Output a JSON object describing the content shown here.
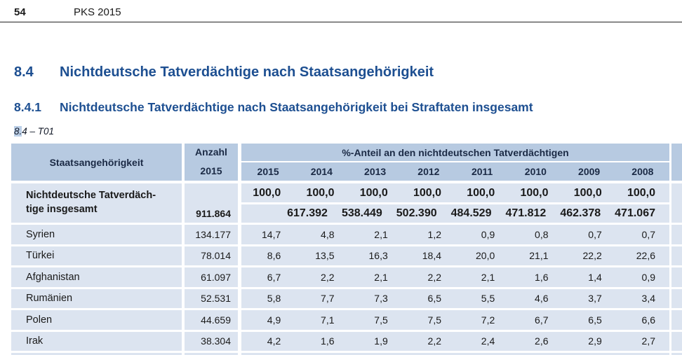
{
  "colors": {
    "heading_blue": "#1d4f91",
    "table_header_bg": "#b7cae1",
    "table_row_bg": "#dce4f0",
    "header_text": "#1b2a45",
    "body_text": "#1a1a1a"
  },
  "page": {
    "number": "54",
    "header_title": "PKS 2015"
  },
  "headings": {
    "h1_number": "8.4",
    "h1_text": "Nichtdeutsche Tatverdächtige nach Staatsangehörigkeit",
    "h2_number": "8.4.1",
    "h2_text": "Nichtdeutsche Tatverdächtige nach Staatsangehörigkeit bei Straftaten insgesamt",
    "table_label": "8.4 – T01"
  },
  "table": {
    "col1_header": "Staatsangehörigkeit",
    "col2_header_line1": "Anzahl",
    "col2_header_line2": "2015",
    "group_header": "%-Anteil an den nichtdeutschen Tatverdächtigen",
    "years": [
      "2015",
      "2014",
      "2013",
      "2012",
      "2011",
      "2010",
      "2009",
      "2008"
    ],
    "total_row": {
      "label_line1": "Nichtdeutsche Tatverdäch-",
      "label_line2": "tige insgesamt",
      "anzahl": "911.864",
      "percent": [
        "100,0",
        "100,0",
        "100,0",
        "100,0",
        "100,0",
        "100,0",
        "100,0",
        "100,0"
      ],
      "absolute": [
        "",
        "617.392",
        "538.449",
        "502.390",
        "484.529",
        "471.812",
        "462.378",
        "471.067"
      ]
    },
    "rows": [
      {
        "label": "Syrien",
        "anzahl": "134.177",
        "values": [
          "14,7",
          "4,8",
          "2,1",
          "1,2",
          "0,9",
          "0,8",
          "0,7",
          "0,7"
        ]
      },
      {
        "label": "Türkei",
        "anzahl": "78.014",
        "values": [
          "8,6",
          "13,5",
          "16,3",
          "18,4",
          "20,0",
          "21,1",
          "22,2",
          "22,6"
        ]
      },
      {
        "label": "Afghanistan",
        "anzahl": "61.097",
        "values": [
          "6,7",
          "2,2",
          "2,1",
          "2,2",
          "2,1",
          "1,6",
          "1,4",
          "0,9"
        ]
      },
      {
        "label": "Rumänien",
        "anzahl": "52.531",
        "values": [
          "5,8",
          "7,7",
          "7,3",
          "6,5",
          "5,5",
          "4,6",
          "3,7",
          "3,4"
        ]
      },
      {
        "label": "Polen",
        "anzahl": "44.659",
        "values": [
          "4,9",
          "7,1",
          "7,5",
          "7,5",
          "7,2",
          "6,7",
          "6,5",
          "6,6"
        ]
      },
      {
        "label": "Irak",
        "anzahl": "38.304",
        "values": [
          "4,2",
          "1,6",
          "1,9",
          "2,2",
          "2,4",
          "2,6",
          "2,9",
          "2,7"
        ]
      }
    ]
  }
}
